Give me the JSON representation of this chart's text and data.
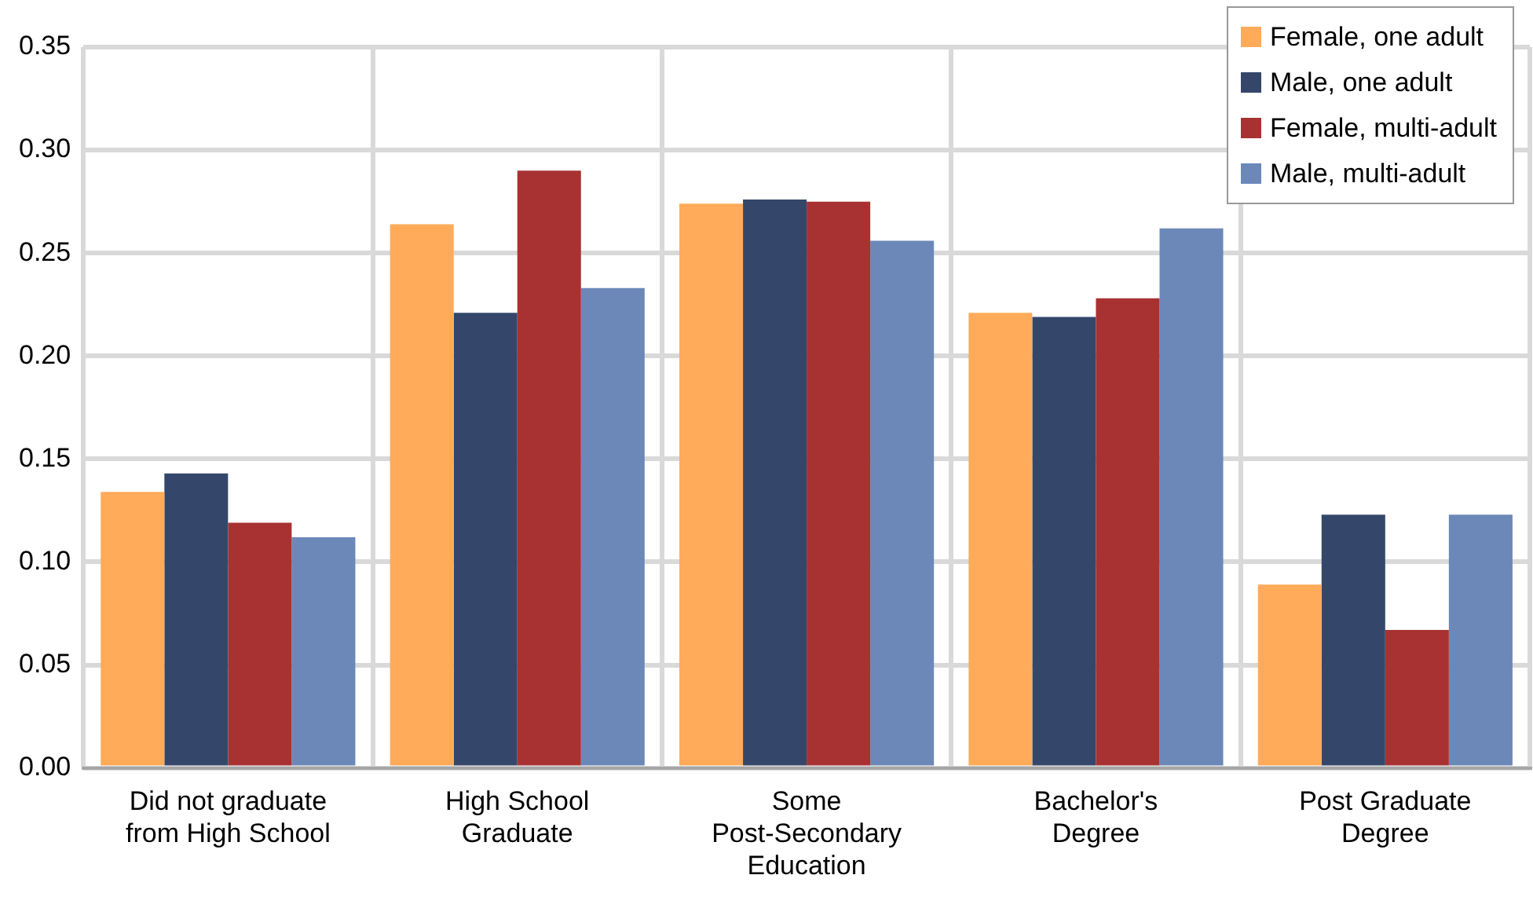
{
  "chart_data": {
    "type": "bar",
    "categories": [
      "Did not graduate from High School",
      "High School Graduate",
      "Some Post-Secondary Education",
      "Bachelor's Degree",
      "Post Graduate Degree"
    ],
    "series": [
      {
        "name": "Female, one adult",
        "color": "#ffab5a",
        "values": [
          0.134,
          0.264,
          0.274,
          0.221,
          0.089
        ]
      },
      {
        "name": "Male, one adult",
        "color": "#34476b",
        "values": [
          0.143,
          0.221,
          0.276,
          0.219,
          0.123
        ]
      },
      {
        "name": "Female, multi-adult",
        "color": "#a83232",
        "values": [
          0.119,
          0.29,
          0.275,
          0.228,
          0.067
        ]
      },
      {
        "name": "Male, multi-adult",
        "color": "#6b88b8",
        "values": [
          0.112,
          0.233,
          0.256,
          0.262,
          0.123
        ]
      }
    ],
    "ylim": [
      0,
      0.35
    ],
    "yticks": [
      {
        "value": 0,
        "label": "0.00"
      },
      {
        "value": 0.05,
        "label": "0.05"
      },
      {
        "value": 0.1,
        "label": "0.10"
      },
      {
        "value": 0.15,
        "label": "0.15"
      },
      {
        "value": 0.2,
        "label": "0.20"
      },
      {
        "value": 0.25,
        "label": "0.25"
      },
      {
        "value": 0.3,
        "label": "0.30"
      },
      {
        "value": 0.35,
        "label": "0.35"
      }
    ],
    "grid": true,
    "legend": "top right"
  }
}
